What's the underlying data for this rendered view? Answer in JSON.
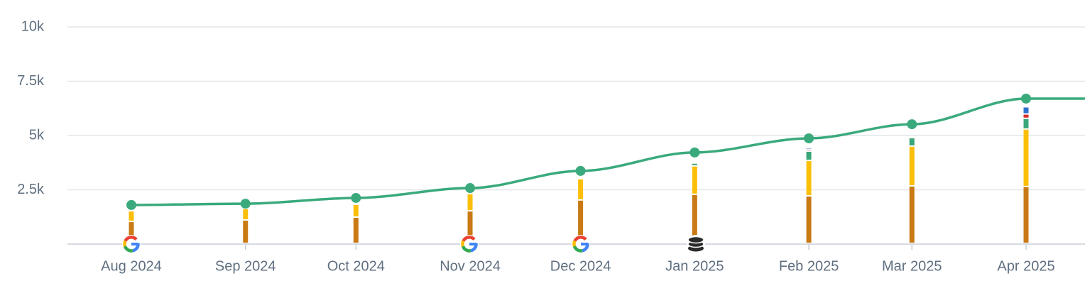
{
  "chart_data": {
    "type": "line",
    "x": [
      "Aug 2024",
      "Sep 2024",
      "Oct 2024",
      "Nov 2024",
      "Dec 2024",
      "Jan 2025",
      "Feb 2025",
      "Mar 2025",
      "Apr 2025"
    ],
    "ylim": [
      0,
      10000
    ],
    "yticks": [
      {
        "value": 2500,
        "label": "2.5k"
      },
      {
        "value": 5000,
        "label": "5k"
      },
      {
        "value": 7500,
        "label": "7.5k"
      },
      {
        "value": 10000,
        "label": "10k"
      }
    ],
    "grid": true,
    "stacked": true,
    "series": [
      {
        "type": "bar",
        "color": "#c97a14",
        "values": [
          1010,
          1080,
          1210,
          1500,
          2000,
          2260,
          2190,
          2650,
          2620
        ]
      },
      {
        "type": "bar",
        "color": "#fbbf0a",
        "values": [
          490,
          520,
          590,
          790,
          980,
          1310,
          1630,
          1830,
          2650
        ]
      },
      {
        "type": "bar",
        "color": "#3aa67a",
        "values": [
          null,
          null,
          null,
          null,
          null,
          130,
          430,
          390,
          490
        ]
      },
      {
        "type": "bar",
        "color": "#d62b2b",
        "values": [
          null,
          null,
          null,
          null,
          null,
          null,
          80,
          60,
          200
        ]
      },
      {
        "type": "bar",
        "color": "#2f6fd0",
        "values": [
          null,
          null,
          null,
          null,
          null,
          null,
          80,
          60,
          330
        ]
      },
      {
        "type": "line",
        "color": "#3aaa7c",
        "values": [
          1800,
          1860,
          2125,
          2580,
          3370,
          4220,
          4870,
          5520,
          6700
        ]
      }
    ]
  }
}
